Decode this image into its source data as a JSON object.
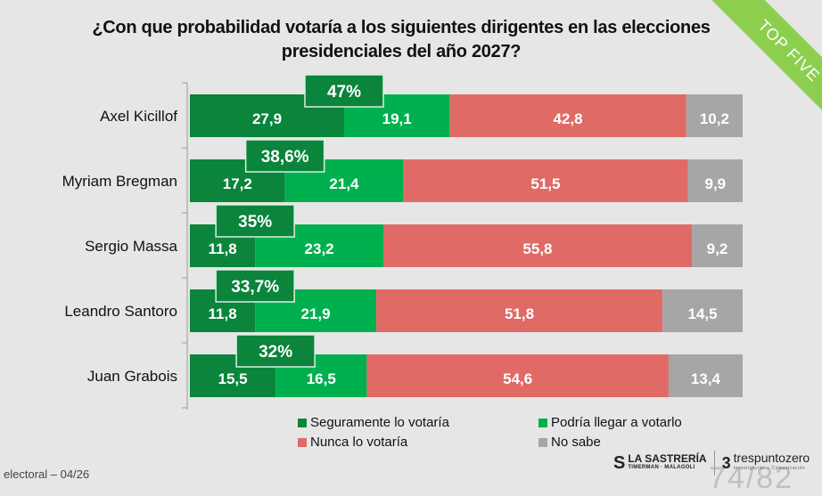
{
  "title": "¿Con que probabilidad votaría a los siguientes dirigentes en las elecciones presidenciales del año 2027?",
  "title_line1": "¿Con que probabilidad votaría a los siguientes dirigentes en las elecciones",
  "title_line2": "presidenciales del año 2027?",
  "ribbon_label": "TOP FIVE",
  "footer_left": "electoral – 04/26",
  "page_number": "74/82",
  "logos": {
    "sastreria_icon": "S",
    "sastreria_name": "LA SASTRERÍA",
    "sastreria_sub": "TIMERMAN · MALAGOLI",
    "trespunto_icon": "3",
    "trespunto_name": "trespuntozero",
    "trespunto_sub": "Investigación + Comunicación"
  },
  "colors": {
    "seguramente": "#0b843c",
    "podria": "#00b04f",
    "nunca": "#e06a65",
    "no_sabe": "#a6a6a6",
    "callout": "#0b843c",
    "ribbon": "#8ccf4f",
    "background": "#e6e6e6"
  },
  "chart_data": {
    "type": "bar",
    "orientation": "horizontal",
    "stacked": true,
    "title": "¿Con que probabilidad votaría a los siguientes dirigentes en las elecciones presidenciales del año 2027?",
    "xlabel": "",
    "ylabel": "",
    "xlim": [
      0,
      100
    ],
    "grid": false,
    "legend_position": "bottom",
    "categories": [
      "Axel Kicillof",
      "Myriam Bregman",
      "Sergio Massa",
      "Leandro Santoro",
      "Juan Grabois"
    ],
    "series": [
      {
        "name": "Seguramente lo votaría",
        "key": "seguramente",
        "values": [
          27.9,
          17.2,
          11.8,
          11.8,
          15.5
        ],
        "labels": [
          "27,9",
          "17,2",
          "11,8",
          "11,8",
          "15,5"
        ]
      },
      {
        "name": "Podría llegar a votarlo",
        "key": "podria",
        "values": [
          19.1,
          21.4,
          23.2,
          21.9,
          16.5
        ],
        "labels": [
          "19,1",
          "21,4",
          "23,2",
          "21,9",
          "16,5"
        ]
      },
      {
        "name": "Nunca lo votaría",
        "key": "nunca",
        "values": [
          42.8,
          51.5,
          55.8,
          51.8,
          54.6
        ],
        "labels": [
          "42,8",
          "51,5",
          "55,8",
          "51,8",
          "54,6"
        ]
      },
      {
        "name": "No sabe",
        "key": "no_sabe",
        "values": [
          10.2,
          9.9,
          9.2,
          14.5,
          13.4
        ],
        "labels": [
          "10,2",
          "9,9",
          "9,2",
          "14,5",
          "13,4"
        ]
      }
    ],
    "totals_positive": [
      47,
      38.6,
      35,
      33.7,
      32
    ],
    "totals_positive_labels": [
      "47%",
      "38,6%",
      "35%",
      "33,7%",
      "32%"
    ],
    "legend": [
      "Seguramente lo votaría",
      "Podría llegar a votarlo",
      "Nunca lo votaría",
      "No sabe"
    ]
  }
}
